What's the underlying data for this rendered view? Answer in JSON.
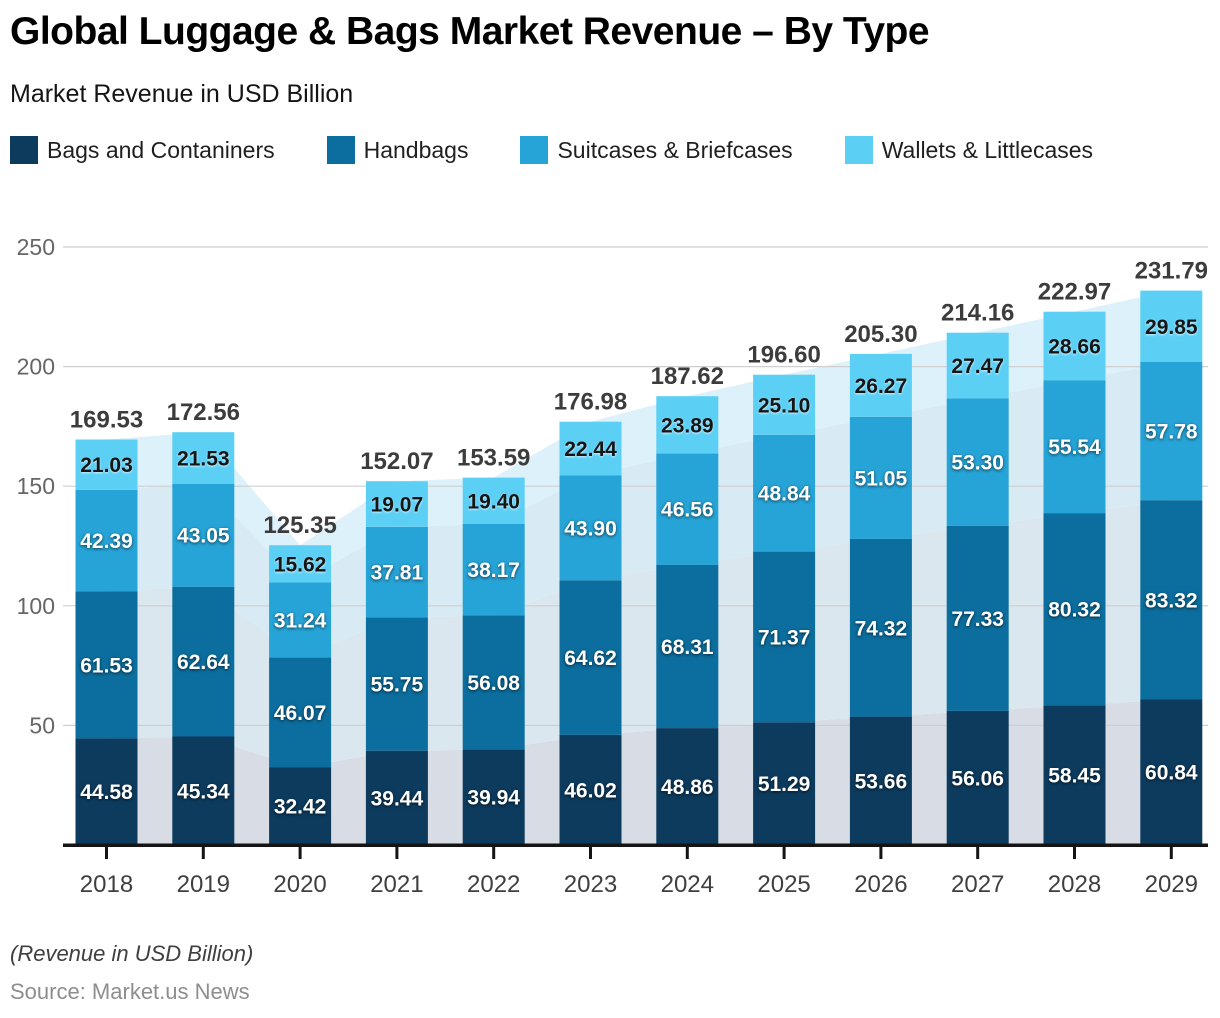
{
  "header": {
    "title": "Global Luggage & Bags Market Revenue – By Type",
    "subtitle": "Market Revenue in USD Billion"
  },
  "legend": [
    {
      "label": "Bags and Contaniners",
      "color": "#0d3b5e"
    },
    {
      "label": "Handbags",
      "color": "#0c6e9e"
    },
    {
      "label": "Suitcases & Briefcases",
      "color": "#27a4d7"
    },
    {
      "label": "Wallets & Littlecases",
      "color": "#5ccff5"
    }
  ],
  "chart_data": {
    "type": "bar",
    "stacked": true,
    "title": "Global Luggage & Bags Market Revenue – By Type",
    "subtitle": "Market Revenue in USD Billion",
    "xlabel": "",
    "ylabel": "Revenue (USD Billion)",
    "ylim": [
      0,
      250
    ],
    "yticks": [
      50,
      100,
      150,
      200,
      250
    ],
    "grid": true,
    "legend_position": "top",
    "background_area_silhouette": true,
    "categories": [
      "2018",
      "2019",
      "2020",
      "2021",
      "2022",
      "2023",
      "2024",
      "2025",
      "2026",
      "2027",
      "2028",
      "2029"
    ],
    "series": [
      {
        "name": "Bags and Contaniners",
        "color": "#0d3b5e",
        "area_color": "#d8dde5",
        "label_color": "#ffffff",
        "values": [
          44.58,
          45.34,
          32.42,
          39.44,
          39.94,
          46.02,
          48.86,
          51.29,
          53.66,
          56.06,
          58.45,
          60.84
        ]
      },
      {
        "name": "Handbags",
        "color": "#0c6e9e",
        "area_color": "#dbe7ef",
        "label_color": "#ffffff",
        "values": [
          61.53,
          62.64,
          46.07,
          55.75,
          56.08,
          64.62,
          68.31,
          71.37,
          74.32,
          77.33,
          80.32,
          83.32
        ]
      },
      {
        "name": "Suitcases & Briefcases",
        "color": "#27a4d7",
        "area_color": "#d8ebf4",
        "label_color": "#ffffff",
        "values": [
          42.39,
          43.05,
          31.24,
          37.81,
          38.17,
          43.9,
          46.56,
          48.84,
          51.05,
          53.3,
          55.54,
          57.78
        ]
      },
      {
        "name": "Wallets & Littlecases",
        "color": "#5ccff5",
        "area_color": "#ddf1fa",
        "label_color": "#151515",
        "values": [
          21.03,
          21.53,
          15.62,
          19.07,
          19.4,
          22.44,
          23.89,
          25.1,
          26.27,
          27.47,
          28.66,
          29.85
        ]
      }
    ],
    "totals": [
      169.53,
      172.56,
      125.35,
      152.07,
      153.59,
      176.98,
      187.62,
      196.6,
      205.3,
      214.16,
      222.97,
      231.79
    ],
    "totals_color": "#3c3c3c",
    "axis_color": "#141414",
    "grid_color": "#cfcfcf",
    "ytick_label_color": "#666666",
    "xtick_label_color": "#3f3f3f"
  },
  "footer": {
    "note": "(Revenue in USD Billion)",
    "source": "Source: Market.us News"
  }
}
